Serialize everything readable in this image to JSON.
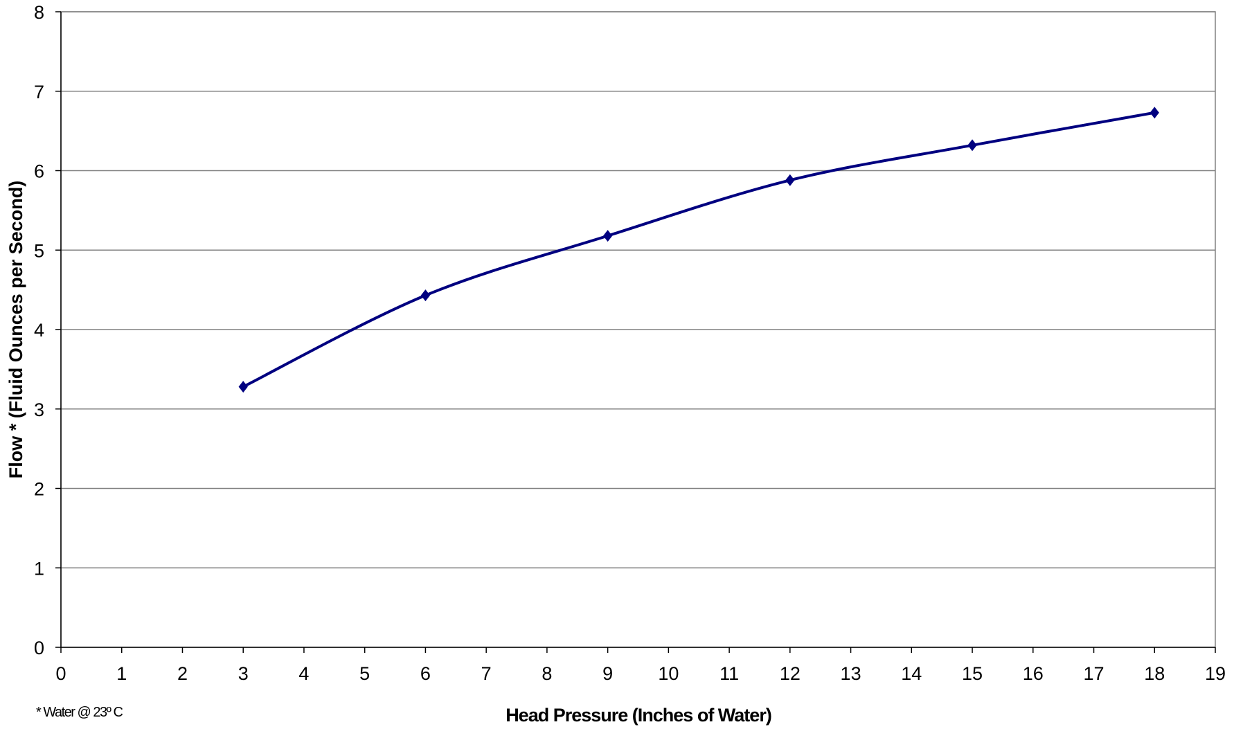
{
  "chart_data": {
    "type": "line",
    "xlabel": "Head Pressure (Inches of Water)",
    "ylabel": "Flow * (Fluid Ounces per Second)",
    "footnote": "* Water @ 23º C",
    "xlim": [
      0,
      19
    ],
    "ylim": [
      0,
      8
    ],
    "x_ticks": [
      "0",
      "1",
      "2",
      "3",
      "4",
      "5",
      "6",
      "7",
      "8",
      "9",
      "10",
      "11",
      "12",
      "13",
      "14",
      "15",
      "16",
      "17",
      "18",
      "19"
    ],
    "y_ticks": [
      "0",
      "1",
      "2",
      "3",
      "4",
      "5",
      "6",
      "7",
      "8"
    ],
    "grid": "horizontal",
    "marker": "diamond",
    "colors": {
      "series": "#000080",
      "grid": "#808080",
      "axis": "#000000"
    },
    "series": [
      {
        "x": [
          3,
          6,
          9,
          12,
          15,
          18
        ],
        "values": [
          3.28,
          4.43,
          5.18,
          5.88,
          6.32,
          6.73
        ]
      }
    ]
  }
}
